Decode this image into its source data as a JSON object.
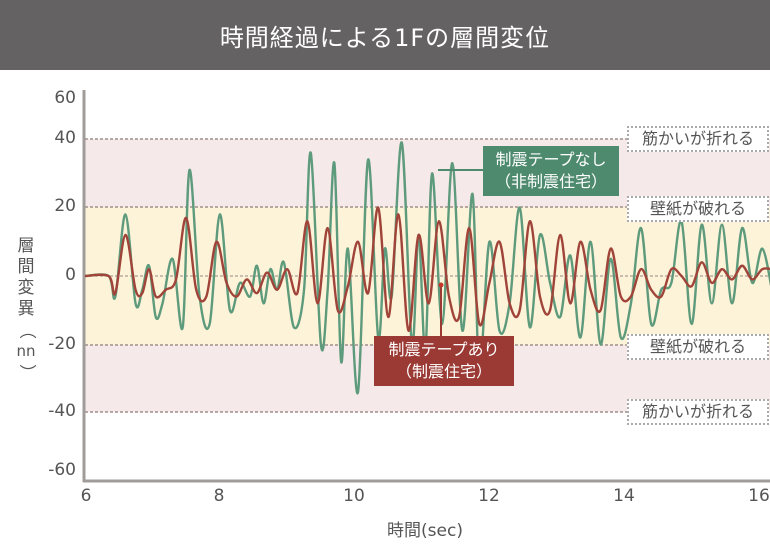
{
  "header": {
    "title": "時間経過による1Fの層間変位"
  },
  "axes": {
    "y_label_chars": [
      "層",
      "間",
      "変",
      "異",
      "（",
      "nn",
      "）"
    ],
    "y_ticks": [
      "60",
      "40",
      "20",
      "0",
      "-20",
      "-40",
      "-60"
    ],
    "x_ticks": [
      "6",
      "8",
      "10",
      "12",
      "14",
      "16"
    ],
    "x_label": "時間(sec)"
  },
  "thresholds": {
    "upper_40": "筋かいが折れる",
    "upper_20": "壁紙が破れる",
    "lower_20": "壁紙が破れる",
    "lower_40": "筋かいが折れる"
  },
  "callouts": {
    "without_tape": {
      "line1": "制震テープなし",
      "line2": "（非制震住宅）",
      "color": "#4e8a6e"
    },
    "with_tape": {
      "line1": "制震テープあり",
      "line2": "（制震住宅）",
      "color": "#9b3a34"
    }
  },
  "colors": {
    "header_bg": "#646262",
    "band_outer": "#f5e9e9",
    "band_inner": "#fdf3d8",
    "green_line": "#5e9a7c",
    "red_line": "#a0443a",
    "axis": "#a09c9a"
  },
  "chart_data": {
    "type": "line",
    "title": "時間経過による1Fの層間変位",
    "xlabel": "時間(sec)",
    "ylabel": "層間変異(nn)",
    "xlim": [
      6,
      16.5
    ],
    "ylim": [
      -60,
      60
    ],
    "x_ticks": [
      6,
      8,
      10,
      12,
      14,
      16
    ],
    "y_ticks": [
      60,
      40,
      20,
      0,
      -20,
      -40,
      -60
    ],
    "grid": false,
    "bands": [
      {
        "range": [
          20,
          40
        ],
        "label": "筋かいが折れる"
      },
      {
        "range": [
          -20,
          20
        ],
        "label": "壁紙が破れる"
      },
      {
        "range": [
          -40,
          -20
        ],
        "label": "筋かいが折れる"
      }
    ],
    "series": [
      {
        "name": "制震テープなし（非制震住宅）",
        "x": [
          6.0,
          6.35,
          6.45,
          6.6,
          6.75,
          6.85,
          6.95,
          7.05,
          7.15,
          7.3,
          7.45,
          7.55,
          7.7,
          7.85,
          8.0,
          8.15,
          8.3,
          8.45,
          8.55,
          8.65,
          8.75,
          8.85,
          8.95,
          9.1,
          9.25,
          9.35,
          9.5,
          9.6,
          9.7,
          9.8,
          9.9,
          10.05,
          10.2,
          10.35,
          10.45,
          10.55,
          10.7,
          10.85,
          10.95,
          11.05,
          11.15,
          11.3,
          11.45,
          11.6,
          11.75,
          11.85,
          12.0,
          12.15,
          12.3,
          12.45,
          12.6,
          12.75,
          12.9,
          13.05,
          13.2,
          13.35,
          13.5,
          13.65,
          13.8,
          13.95,
          14.1,
          14.25,
          14.4,
          14.55,
          14.7,
          14.85,
          15.0,
          15.15,
          15.3,
          15.45,
          15.6,
          15.75,
          15.9,
          16.05,
          16.2
        ],
        "values": [
          0,
          0,
          -6,
          18,
          -8,
          -4,
          3,
          -12,
          -8,
          5,
          -15,
          31,
          -6,
          -14,
          18,
          -10,
          -2,
          -6,
          3,
          -8,
          2,
          -4,
          4,
          -15,
          -4,
          36,
          -20,
          -4,
          33,
          -25,
          8,
          -34,
          34,
          -18,
          8,
          -6,
          39,
          -20,
          12,
          -22,
          30,
          -14,
          33,
          -16,
          24,
          -28,
          10,
          -16,
          -8,
          20,
          -15,
          12,
          -2,
          -12,
          6,
          -18,
          10,
          -20,
          5,
          -18,
          -8,
          14,
          -14,
          -4,
          -2,
          16,
          -14,
          15,
          -8,
          15,
          -8,
          14,
          -2,
          8,
          -5
        ]
      },
      {
        "name": "制震テープあり（制震住宅）",
        "x": [
          6.0,
          6.35,
          6.45,
          6.6,
          6.75,
          6.85,
          6.95,
          7.05,
          7.2,
          7.35,
          7.5,
          7.65,
          7.8,
          7.95,
          8.1,
          8.25,
          8.4,
          8.55,
          8.7,
          8.85,
          9.0,
          9.15,
          9.3,
          9.45,
          9.6,
          9.75,
          9.9,
          10.05,
          10.2,
          10.35,
          10.5,
          10.65,
          10.8,
          10.95,
          11.1,
          11.25,
          11.4,
          11.55,
          11.7,
          11.85,
          12.0,
          12.15,
          12.3,
          12.45,
          12.6,
          12.75,
          12.9,
          13.05,
          13.2,
          13.35,
          13.5,
          13.65,
          13.8,
          13.95,
          14.1,
          14.25,
          14.4,
          14.55,
          14.7,
          14.85,
          15.0,
          15.15,
          15.3,
          15.45,
          15.6,
          15.75,
          15.9,
          16.05,
          16.2
        ],
        "values": [
          0,
          0,
          -5,
          12,
          -4,
          -5,
          2,
          -6,
          -4,
          -1,
          17,
          -4,
          -6,
          10,
          -2,
          -6,
          -1,
          -5,
          1,
          -4,
          2,
          -5,
          16,
          -8,
          14,
          -10,
          -3,
          10,
          -5,
          20,
          -12,
          18,
          -16,
          12,
          -8,
          16,
          -6,
          -12,
          14,
          -14,
          -2,
          10,
          -8,
          -10,
          16,
          -6,
          -10,
          12,
          -8,
          10,
          -4,
          -10,
          8,
          -6,
          -6,
          2,
          -4,
          -6,
          2,
          0,
          -3,
          4,
          -2,
          2,
          -1,
          3,
          -1,
          2,
          2
        ]
      }
    ]
  }
}
